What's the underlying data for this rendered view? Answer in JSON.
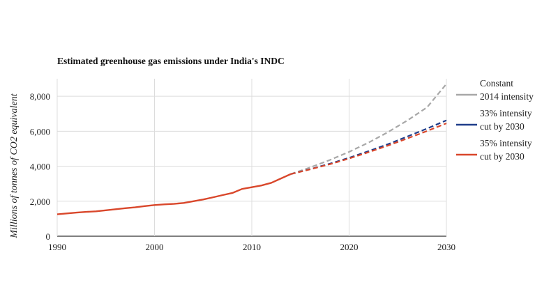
{
  "chart_data": {
    "type": "line",
    "title": "Estimated greenhouse gas emissions under India's INDC",
    "xlabel": "",
    "ylabel": "Millions of tonnes of CO2 equivalent",
    "xlim": [
      1990,
      2030
    ],
    "ylim": [
      0,
      9000
    ],
    "x_ticks": [
      "1990",
      "2000",
      "2010",
      "2020",
      "2030"
    ],
    "y_ticks": [
      "0",
      "2,000",
      "4,000",
      "6,000",
      "8,000"
    ],
    "grid": true,
    "legend_position": "right",
    "historical": {
      "color": "#d9472b",
      "x": [
        1990,
        1991,
        1992,
        1993,
        1994,
        1995,
        1996,
        1997,
        1998,
        1999,
        2000,
        2001,
        2002,
        2003,
        2004,
        2005,
        2006,
        2007,
        2008,
        2009,
        2010,
        2011,
        2012,
        2013,
        2014
      ],
      "values": [
        1250,
        1300,
        1350,
        1390,
        1420,
        1480,
        1540,
        1600,
        1650,
        1720,
        1780,
        1820,
        1850,
        1900,
        2000,
        2100,
        2220,
        2350,
        2470,
        2700,
        2800,
        2900,
        3050,
        3300,
        3550
      ]
    },
    "series": [
      {
        "name": "Constant 2014 intensity",
        "legend_lines": [
          "Constant",
          "2014 intensity"
        ],
        "color": "#a8a8a8",
        "dashed": true,
        "x": [
          2014,
          2016,
          2018,
          2020,
          2022,
          2024,
          2026,
          2028,
          2030
        ],
        "values": [
          3550,
          3930,
          4350,
          4820,
          5350,
          5950,
          6620,
          7360,
          8700
        ]
      },
      {
        "name": "33% intensity cut by 2030",
        "legend_lines": [
          "33% intensity",
          "cut by 2030"
        ],
        "color": "#1f3d8a",
        "dashed": true,
        "x": [
          2014,
          2016,
          2018,
          2020,
          2022,
          2024,
          2026,
          2028,
          2030
        ],
        "values": [
          3550,
          3830,
          4140,
          4480,
          4860,
          5260,
          5700,
          6150,
          6620
        ]
      },
      {
        "name": "35% intensity cut by 2030",
        "legend_lines": [
          "35% intensity",
          "cut by 2030"
        ],
        "color": "#d9472b",
        "dashed": true,
        "x": [
          2014,
          2016,
          2018,
          2020,
          2022,
          2024,
          2026,
          2028,
          2030
        ],
        "values": [
          3550,
          3820,
          4110,
          4440,
          4800,
          5180,
          5590,
          6010,
          6450
        ]
      }
    ]
  }
}
